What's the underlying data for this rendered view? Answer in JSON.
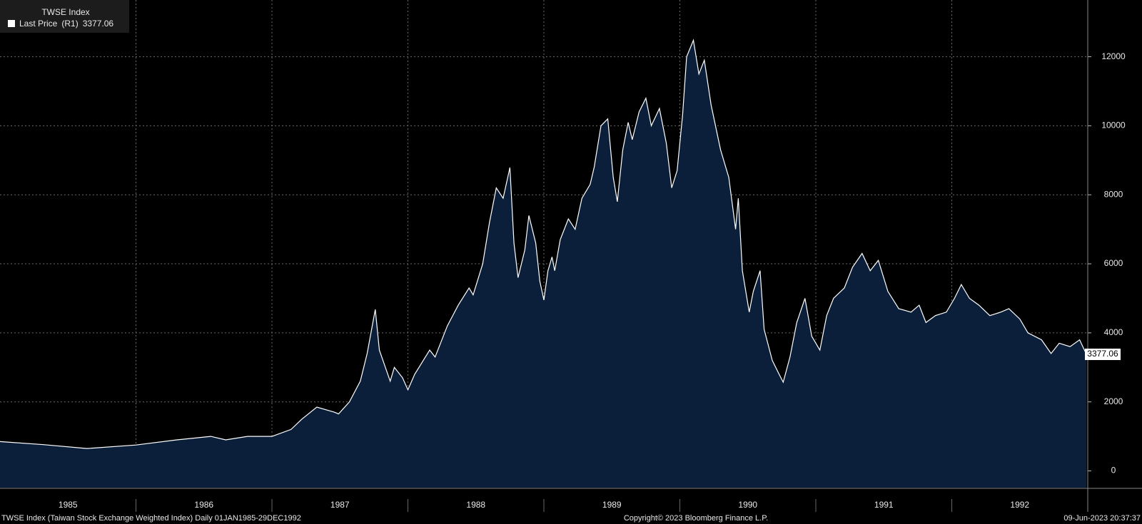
{
  "chart_data": {
    "type": "area",
    "title": "TWSE Index",
    "last_value": 3377.06,
    "source_note": "TWSE Index (Taiwan Stock Exchange Weighted Index)  Daily 01JAN1985-29DEC1992",
    "copyright": "Copyright© 2023 Bloomberg Finance L.P.",
    "timestamp": "09-Jun-2023 20:37:37",
    "x": [
      1985.0,
      1985.32,
      1985.64,
      1986.0,
      1986.3,
      1986.55,
      1986.66,
      1986.82,
      1987.0,
      1987.14,
      1987.22,
      1987.33,
      1987.46,
      1987.49,
      1987.57,
      1987.65,
      1987.7,
      1987.76,
      1987.79,
      1987.87,
      1987.9,
      1987.96,
      1988.0,
      1988.05,
      1988.16,
      1988.2,
      1988.29,
      1988.37,
      1988.45,
      1988.48,
      1988.55,
      1988.6,
      1988.65,
      1988.7,
      1988.75,
      1988.78,
      1988.81,
      1988.86,
      1988.89,
      1988.94,
      1988.97,
      1989.0,
      1989.03,
      1989.06,
      1989.08,
      1989.12,
      1989.18,
      1989.23,
      1989.28,
      1989.34,
      1989.37,
      1989.42,
      1989.47,
      1989.51,
      1989.54,
      1989.58,
      1989.62,
      1989.65,
      1989.7,
      1989.75,
      1989.79,
      1989.85,
      1989.9,
      1989.94,
      1989.98,
      1990.02,
      1990.05,
      1990.1,
      1990.14,
      1990.18,
      1990.23,
      1990.3,
      1990.36,
      1990.41,
      1990.43,
      1990.46,
      1990.51,
      1990.54,
      1990.59,
      1990.62,
      1990.68,
      1990.73,
      1990.76,
      1990.81,
      1990.86,
      1990.92,
      1990.97,
      1991.03,
      1991.08,
      1991.13,
      1991.21,
      1991.27,
      1991.34,
      1991.4,
      1991.46,
      1991.53,
      1991.61,
      1991.7,
      1991.76,
      1991.81,
      1991.88,
      1991.96,
      1992.02,
      1992.07,
      1992.13,
      1992.2,
      1992.28,
      1992.36,
      1992.42,
      1992.5,
      1992.56,
      1992.66,
      1992.73,
      1992.79,
      1992.87,
      1992.94,
      1992.99
    ],
    "series": [
      {
        "name": "Last Price",
        "axis_label": "(R1)",
        "color": "#ffffff",
        "fill": "#0b1f3b",
        "values": [
          850,
          760,
          650,
          750,
          900,
          1000,
          900,
          1000,
          1000,
          1200,
          1500,
          1850,
          1700,
          1650,
          2000,
          2600,
          3400,
          4680,
          3500,
          2600,
          3000,
          2700,
          2350,
          2800,
          3500,
          3300,
          4200,
          4800,
          5300,
          5100,
          6000,
          7200,
          8200,
          7900,
          8790,
          6600,
          5600,
          6400,
          7400,
          6600,
          5500,
          4950,
          5800,
          6200,
          5800,
          6700,
          7300,
          7000,
          7900,
          8300,
          8800,
          10000,
          10200,
          8500,
          7800,
          9300,
          10100,
          9600,
          10400,
          10800,
          10000,
          10500,
          9500,
          8200,
          8700,
          10300,
          12000,
          12480,
          11500,
          11900,
          10600,
          9300,
          8500,
          7000,
          7900,
          5800,
          4600,
          5200,
          5800,
          4100,
          3200,
          2800,
          2570,
          3300,
          4300,
          5000,
          3900,
          3500,
          4500,
          5000,
          5300,
          5900,
          6300,
          5800,
          6100,
          5200,
          4700,
          4600,
          4800,
          4300,
          4500,
          4600,
          5000,
          5400,
          5000,
          4800,
          4500,
          4600,
          4700,
          4400,
          4000,
          3800,
          3400,
          3700,
          3600,
          3800,
          3377.06
        ]
      }
    ],
    "xlim": [
      1985,
      1993
    ],
    "xticks": [
      {
        "value": 1985,
        "label": "1985"
      },
      {
        "value": 1986,
        "label": "1986"
      },
      {
        "value": 1987,
        "label": "1987"
      },
      {
        "value": 1988,
        "label": "1988"
      },
      {
        "value": 1989,
        "label": "1989"
      },
      {
        "value": 1990,
        "label": "1990"
      },
      {
        "value": 1991,
        "label": "1991"
      },
      {
        "value": 1992,
        "label": "1992"
      }
    ],
    "ylim": [
      -485,
      13644
    ],
    "yticks": [
      0,
      2000,
      4000,
      6000,
      8000,
      10000,
      12000
    ],
    "grid": true
  }
}
